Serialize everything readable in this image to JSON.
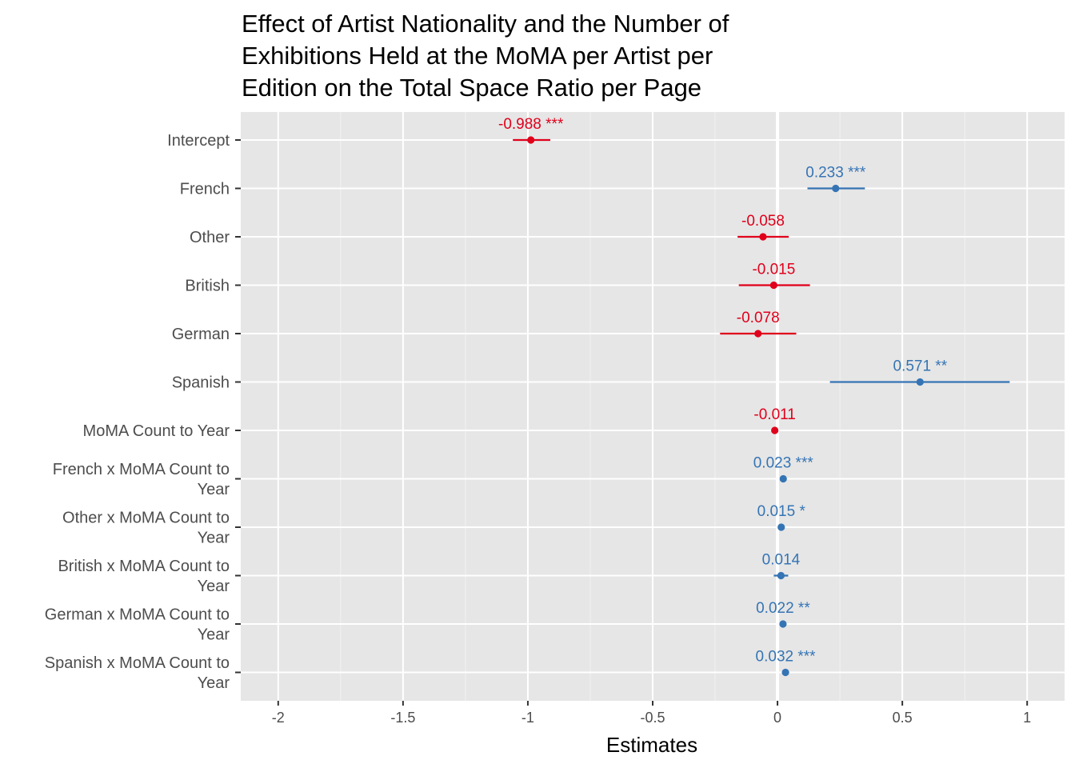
{
  "chart_data": {
    "type": "scatter",
    "subtype": "forest-plot",
    "title_lines": [
      "Effect of Artist Nationality and the Number of",
      "Exhibitions Held at the MoMA per Artist per",
      "Edition on the Total Space Ratio per Page"
    ],
    "xlabel": "Estimates",
    "ylabel": "",
    "xlim": [
      -2.15,
      1.15
    ],
    "x_ticks": [
      -2,
      -1.5,
      -1,
      -0.5,
      0,
      0.5,
      1
    ],
    "x_tick_labels": [
      "-2",
      "-1.5",
      "-1",
      "-0.5",
      "0",
      "0.5",
      "1"
    ],
    "grid": true,
    "colors": {
      "positive": "#3574b4",
      "negative": "#e0001b",
      "panel": "#e6e6e6",
      "grid": "#ffffff"
    },
    "terms": [
      {
        "label_lines": [
          "Intercept"
        ],
        "estimate": -0.988,
        "ci": [
          -1.06,
          -0.91
        ],
        "label": "-0.988 ***"
      },
      {
        "label_lines": [
          "French"
        ],
        "estimate": 0.233,
        "ci": [
          0.12,
          0.35
        ],
        "label": "0.233 ***"
      },
      {
        "label_lines": [
          "Other"
        ],
        "estimate": -0.058,
        "ci": [
          -0.16,
          0.045
        ],
        "label": "-0.058"
      },
      {
        "label_lines": [
          "British"
        ],
        "estimate": -0.015,
        "ci": [
          -0.155,
          0.13
        ],
        "label": "-0.015"
      },
      {
        "label_lines": [
          "German"
        ],
        "estimate": -0.078,
        "ci": [
          -0.23,
          0.075
        ],
        "label": "-0.078"
      },
      {
        "label_lines": [
          "Spanish"
        ],
        "estimate": 0.571,
        "ci": [
          0.21,
          0.93
        ],
        "label": "0.571 **"
      },
      {
        "label_lines": [
          "MoMA Count to Year"
        ],
        "estimate": -0.011,
        "ci": [
          -0.016,
          -0.006
        ],
        "label": "-0.011"
      },
      {
        "label_lines": [
          "French x MoMA Count to",
          "Year"
        ],
        "estimate": 0.023,
        "ci": [
          0.017,
          0.029
        ],
        "label": "0.023 ***"
      },
      {
        "label_lines": [
          "Other x MoMA Count to",
          "Year"
        ],
        "estimate": 0.015,
        "ci": [
          0.009,
          0.021
        ],
        "label": "0.015 *"
      },
      {
        "label_lines": [
          "British x MoMA Count to",
          "Year"
        ],
        "estimate": 0.014,
        "ci": [
          -0.015,
          0.043
        ],
        "label": "0.014"
      },
      {
        "label_lines": [
          "German x MoMA Count to",
          "Year"
        ],
        "estimate": 0.022,
        "ci": [
          0.016,
          0.028
        ],
        "label": "0.022 **"
      },
      {
        "label_lines": [
          "Spanish x MoMA Count to",
          "Year"
        ],
        "estimate": 0.032,
        "ci": [
          0.026,
          0.038
        ],
        "label": "0.032 ***"
      }
    ]
  }
}
